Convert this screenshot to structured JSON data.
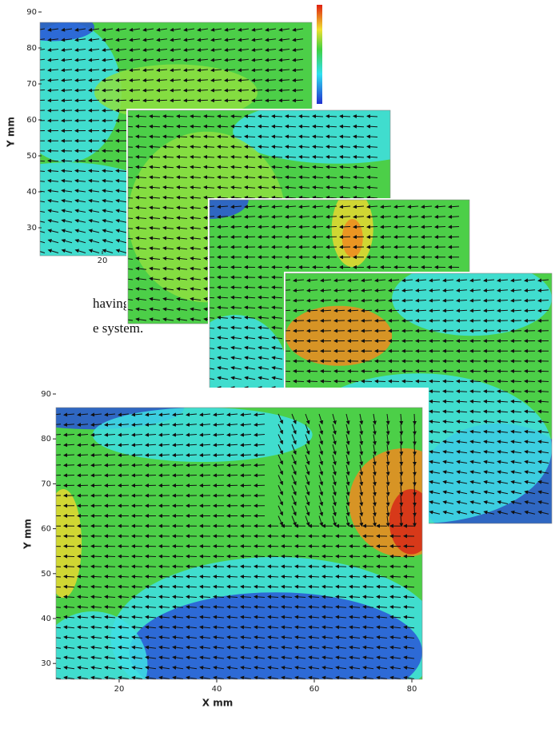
{
  "text": {
    "line1": "having the",
    "line2": "e system."
  },
  "panels": [
    {
      "ylabel": "Y mm",
      "yticks": [
        90,
        80,
        70,
        60,
        50,
        40,
        30
      ],
      "xticks": [
        20
      ]
    },
    {
      "ylabel": "Y mm",
      "xlabel": "X mm",
      "yticks": [
        90,
        80,
        70,
        60,
        50,
        40,
        30
      ],
      "xticks": [
        20,
        40,
        60,
        80
      ]
    }
  ]
}
